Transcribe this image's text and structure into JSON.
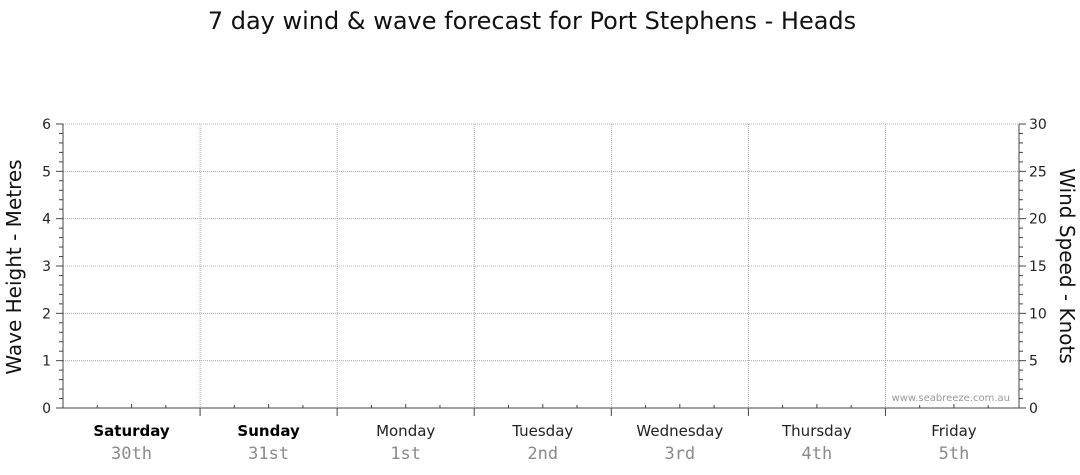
{
  "chart_data": {
    "type": "line",
    "title": "7 day wind & wave forecast for Port Stephens - Heads",
    "ylabel_left": "Wave Height - Metres",
    "ylabel_right": "Wind Speed - Knots",
    "ylim_left": [
      0,
      6
    ],
    "ylim_right": [
      0,
      30
    ],
    "yticks_left": [
      "0",
      "1",
      "2",
      "3",
      "4",
      "5",
      "6"
    ],
    "yticks_right": [
      "0",
      "5",
      "10",
      "15",
      "20",
      "25",
      "30"
    ],
    "grid": true,
    "days": [
      {
        "name": "Saturday",
        "date": "30th",
        "bold": true
      },
      {
        "name": "Sunday",
        "date": "31st",
        "bold": true
      },
      {
        "name": "Monday",
        "date": "1st",
        "bold": false
      },
      {
        "name": "Tuesday",
        "date": "2nd",
        "bold": false
      },
      {
        "name": "Wednesday",
        "date": "3rd",
        "bold": false
      },
      {
        "name": "Thursday",
        "date": "4th",
        "bold": false
      },
      {
        "name": "Friday",
        "date": "5th",
        "bold": false
      }
    ],
    "series": []
  },
  "watermark": "www.seabreeze.com.au",
  "colors": {
    "grid": "#9a9a9a",
    "axis": "#444444"
  }
}
